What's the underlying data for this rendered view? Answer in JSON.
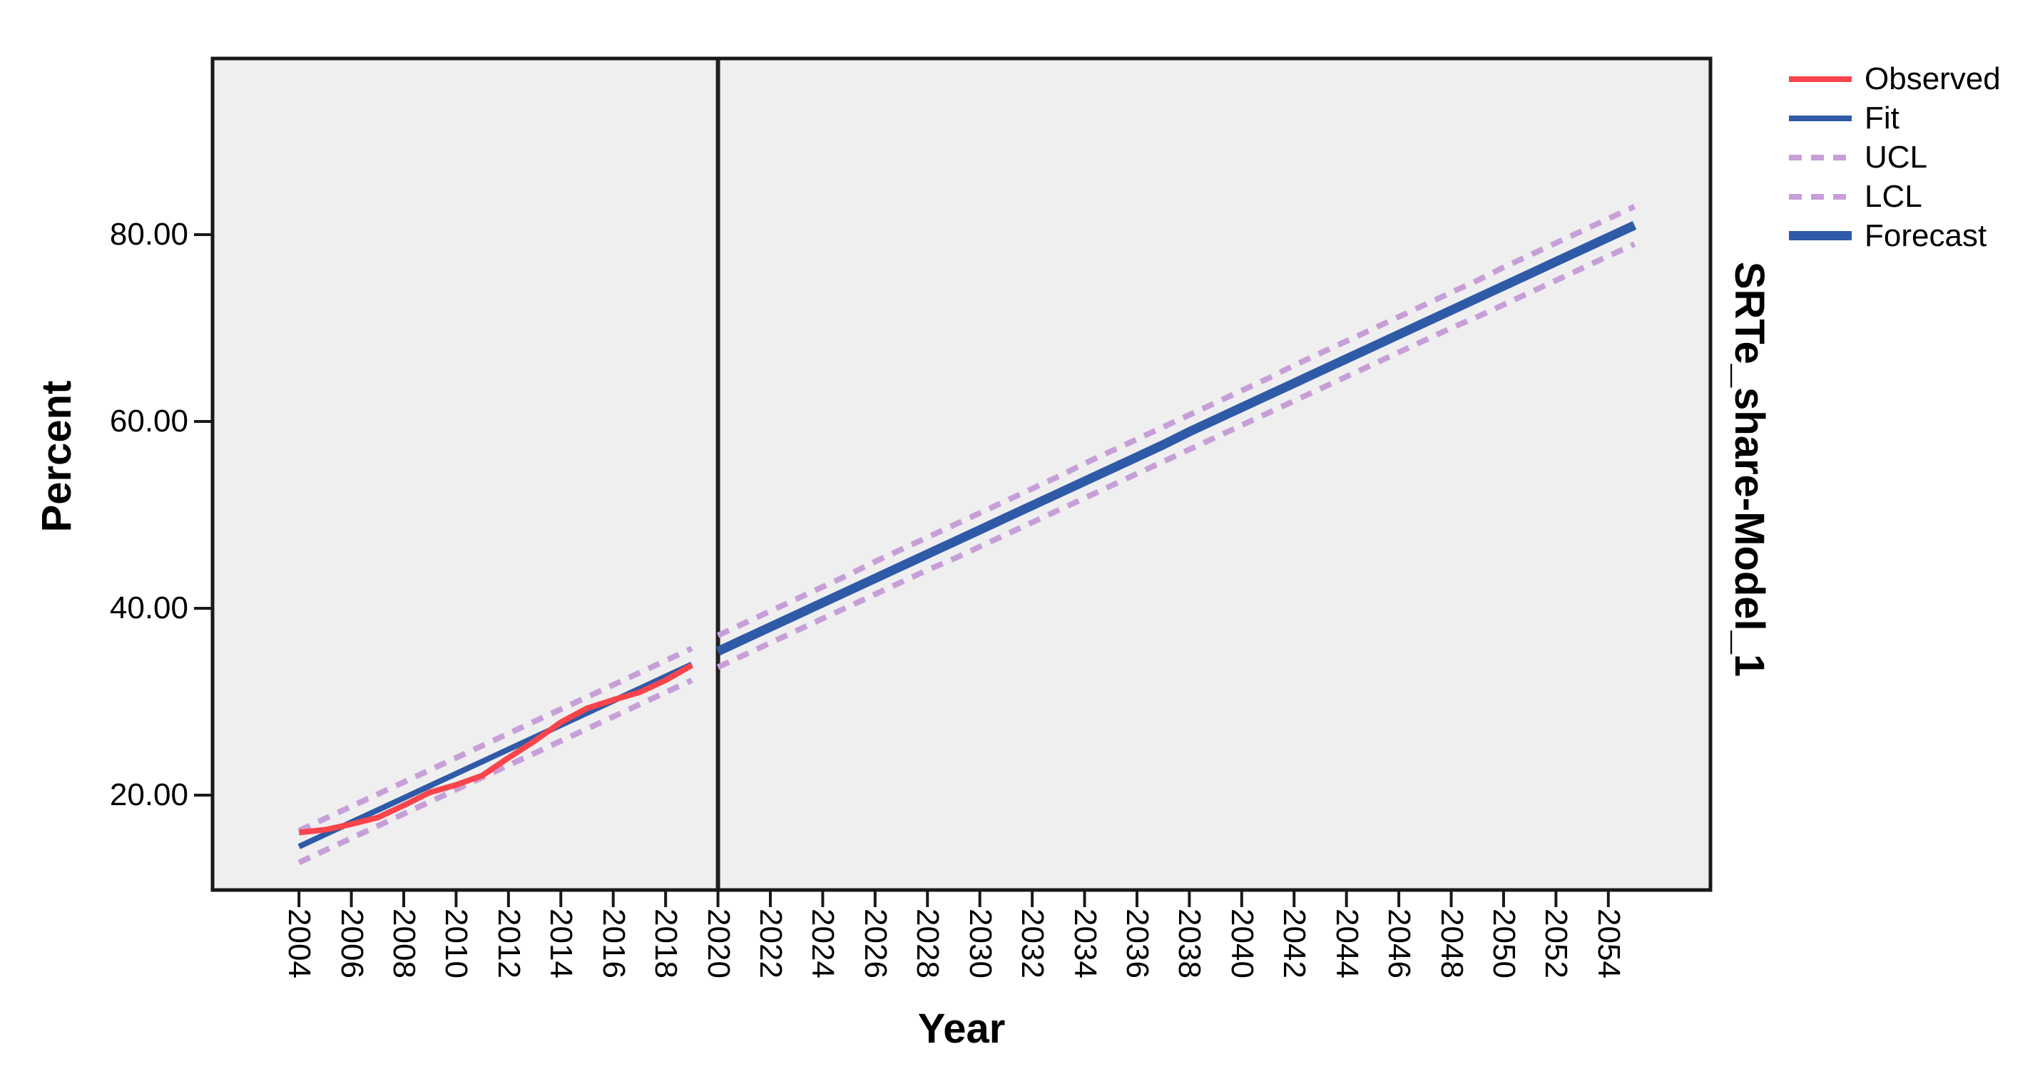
{
  "right_label": "SRTe_share-Model_1",
  "axes": {
    "y_title": "Percent",
    "x_title": "Year",
    "y_ticks": [
      {
        "value": 80,
        "label": "80.00"
      },
      {
        "value": 60,
        "label": "60.00"
      },
      {
        "value": 40,
        "label": "40.00"
      },
      {
        "value": 20,
        "label": "20.00"
      }
    ],
    "x_ticks": [
      2004,
      2006,
      2008,
      2010,
      2012,
      2014,
      2016,
      2018,
      2020,
      2022,
      2024,
      2026,
      2028,
      2030,
      2032,
      2034,
      2036,
      2038,
      2040,
      2042,
      2044,
      2046,
      2048,
      2050,
      2052,
      2054
    ]
  },
  "legend": [
    {
      "label": "Observed",
      "color_key": "observed",
      "dash": false,
      "thickness": 8
    },
    {
      "label": "Fit",
      "color_key": "fit",
      "dash": false,
      "thickness": 8
    },
    {
      "label": "UCL",
      "color_key": "band",
      "dash": true,
      "thickness": 8
    },
    {
      "label": "LCL",
      "color_key": "band",
      "dash": true,
      "thickness": 8
    },
    {
      "label": "Forecast",
      "color_key": "forecast",
      "dash": false,
      "thickness": 13
    }
  ],
  "colors": {
    "observed": "#F9444C",
    "fit": "#2E5AA8",
    "forecast": "#2E5AA8",
    "band": "#C79FD8",
    "plot_bg": "#EFEFEF",
    "frame": "#191919",
    "ref_line": "#202020",
    "text": "#000000"
  },
  "chart_data": {
    "type": "line",
    "title": "",
    "xlabel": "Year",
    "ylabel": "Percent",
    "x_domain": [
      2000.7,
      2057.9
    ],
    "y_domain": [
      9.85,
      98.85
    ],
    "grid": false,
    "legend_position": "top-right",
    "reference_line_x": 2020,
    "z_order": [
      "UCL",
      "LCL",
      "Fit",
      "Forecast",
      "Observed"
    ],
    "series": [
      {
        "name": "Observed",
        "color_key": "observed",
        "dash": false,
        "width": 8,
        "segments": [
          {
            "x_start": 2004,
            "x_step": 1,
            "values": [
              16.0,
              16.3,
              16.9,
              17.6,
              18.9,
              20.3,
              21.1,
              22.1,
              24.0,
              25.8,
              27.8,
              29.3,
              30.2,
              31.0,
              32.3,
              33.9
            ]
          }
        ]
      },
      {
        "name": "Fit",
        "color_key": "fit",
        "dash": false,
        "width": 8,
        "segments": [
          {
            "x_start": 2004,
            "x_step": 1,
            "values": [
              14.5,
              15.8,
              17.1,
              18.4,
              19.7,
              21.0,
              22.3,
              23.6,
              24.9,
              26.2,
              27.5,
              28.8,
              30.1,
              31.4,
              32.7,
              34.0
            ]
          }
        ]
      },
      {
        "name": "UCL",
        "color_key": "band",
        "dash": true,
        "width": 8,
        "segments": [
          {
            "x_start": 2004,
            "x_step": 1,
            "values": [
              16.2,
              17.5,
              18.8,
              20.1,
              21.4,
              22.7,
              24.0,
              25.3,
              26.6,
              27.9,
              29.2,
              30.5,
              31.8,
              33.1,
              34.4,
              35.7
            ]
          },
          {
            "x_start": 2020,
            "x_step": 1,
            "values": [
              37.1,
              38.4,
              39.7,
              41.0,
              42.3,
              43.6,
              45.0,
              46.3,
              47.6,
              48.9,
              50.2,
              51.5,
              52.8,
              54.1,
              55.5,
              56.8,
              58.1,
              59.4,
              60.7,
              62.0,
              63.3,
              64.6,
              66.0,
              67.3,
              68.6,
              69.9,
              71.2,
              72.5,
              73.8,
              75.1,
              76.5,
              77.8,
              79.1,
              80.4,
              81.7,
              83.0
            ]
          }
        ]
      },
      {
        "name": "LCL",
        "color_key": "band",
        "dash": true,
        "width": 8,
        "segments": [
          {
            "x_start": 2004,
            "x_step": 1,
            "values": [
              12.8,
              14.1,
              15.4,
              16.7,
              18.0,
              19.3,
              20.6,
              21.9,
              23.2,
              24.5,
              25.8,
              27.1,
              28.4,
              29.7,
              31.0,
              32.3
            ]
          },
          {
            "x_start": 2020,
            "x_step": 1,
            "values": [
              33.7,
              35.0,
              36.3,
              37.6,
              38.9,
              40.2,
              41.5,
              42.8,
              44.1,
              45.3,
              46.6,
              47.9,
              49.2,
              50.5,
              51.8,
              53.1,
              54.4,
              55.7,
              57.0,
              58.3,
              59.6,
              60.9,
              62.2,
              63.5,
              64.8,
              66.1,
              67.4,
              68.7,
              70.0,
              71.2,
              72.5,
              73.8,
              75.1,
              76.4,
              77.7,
              79.0
            ]
          }
        ]
      },
      {
        "name": "Forecast",
        "color_key": "forecast",
        "dash": false,
        "width": 13,
        "segments": [
          {
            "x_start": 2020,
            "x_step": 1,
            "values": [
              35.4,
              36.7,
              38.0,
              39.3,
              40.6,
              41.9,
              43.2,
              44.5,
              45.8,
              47.1,
              48.4,
              49.7,
              51.0,
              52.3,
              53.6,
              54.9,
              56.2,
              57.5,
              58.9,
              60.2,
              61.5,
              62.8,
              64.1,
              65.4,
              66.7,
              68.0,
              69.3,
              70.6,
              71.9,
              73.2,
              74.5,
              75.8,
              77.1,
              78.4,
              79.7,
              81.0
            ]
          }
        ]
      }
    ]
  }
}
